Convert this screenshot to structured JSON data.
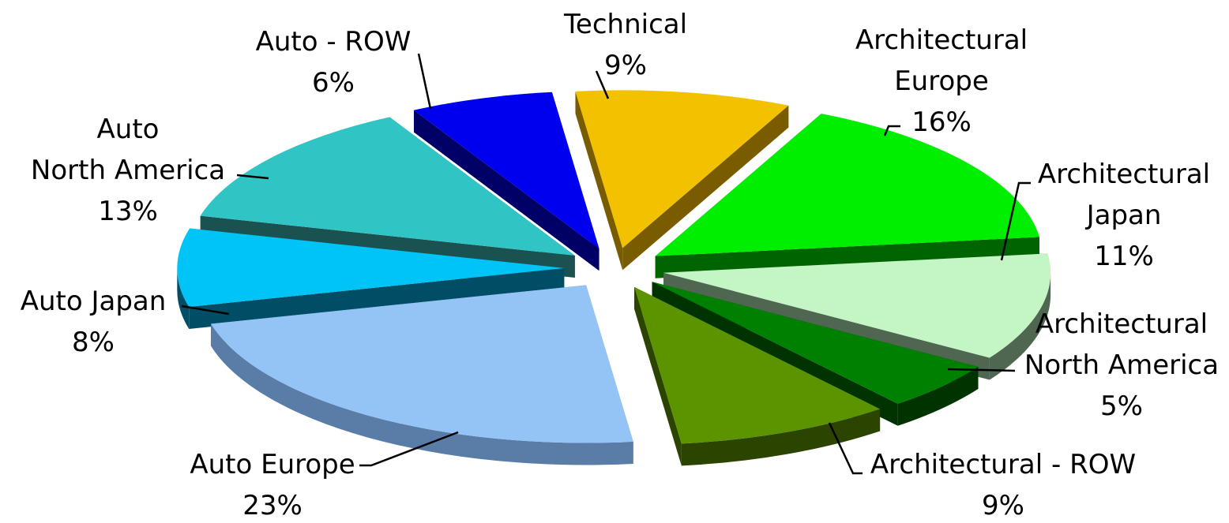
{
  "chart_data": {
    "type": "pie",
    "variant": "3d-exploded",
    "title": "",
    "legend": "none",
    "data_labels": "category name and percentage",
    "slices": [
      {
        "name": "Technical",
        "value": 9,
        "pct_label": "9%",
        "color": "#F2C200",
        "side_color": "#7A5C00"
      },
      {
        "name": "Architectural Europe",
        "value": 16,
        "pct_label": "16%",
        "color": "#00EE00",
        "side_color": "#006400"
      },
      {
        "name": "Architectural Japan",
        "value": 11,
        "pct_label": "11%",
        "color": "#C4F5C4",
        "side_color": "#4F6650"
      },
      {
        "name": "Architectural North America",
        "value": 5,
        "pct_label": "5%",
        "color": "#008000",
        "side_color": "#003300"
      },
      {
        "name": "Architectural - ROW",
        "value": 9,
        "pct_label": "9%",
        "color": "#5C9400",
        "side_color": "#2B4400"
      },
      {
        "name": "Auto Europe",
        "value": 23,
        "pct_label": "23%",
        "color": "#94C3F5",
        "side_color": "#5A7DA8"
      },
      {
        "name": "Auto Japan",
        "value": 8,
        "pct_label": "8%",
        "color": "#00C4F5",
        "side_color": "#004E66"
      },
      {
        "name": "Auto North America",
        "value": 13,
        "pct_label": "13%",
        "color": "#30C4C4",
        "side_color": "#1A5252"
      },
      {
        "name": "Auto - ROW",
        "value": 6,
        "pct_label": "6%",
        "color": "#0000EE",
        "side_color": "#000066"
      }
    ]
  }
}
